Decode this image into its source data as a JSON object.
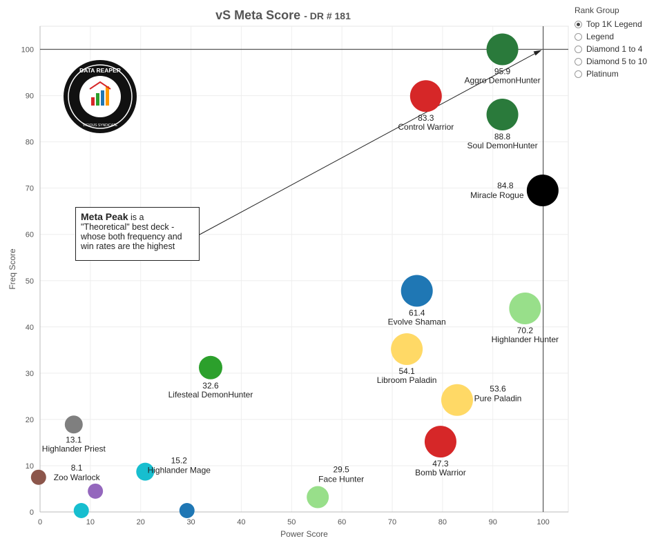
{
  "title": {
    "main": "vS Meta Score",
    "sub": "- DR # 181"
  },
  "legend": {
    "title": "Rank Group",
    "items": [
      {
        "label": "Top 1K Legend",
        "selected": true
      },
      {
        "label": "Legend",
        "selected": false
      },
      {
        "label": "Diamond 1 to 4",
        "selected": false
      },
      {
        "label": "Diamond 5 to 10",
        "selected": false
      },
      {
        "label": "Platinum",
        "selected": false
      }
    ]
  },
  "annotation": {
    "strong": "Meta Peak",
    "line1": " is a",
    "line2": "\"Theoretical\" best deck -",
    "line3": "whose both frequency and",
    "line4": "win rates are the highest"
  },
  "logo": {
    "text_top": "DATA REAPER REPORT",
    "text_bottom": "VICIOUS SYNDICATE PRESENTS"
  },
  "chart_data": {
    "type": "scatter",
    "title": "vS Meta Score - DR # 181",
    "xlabel": "Power Score",
    "ylabel": "Freq Score",
    "xlim": [
      0,
      105
    ],
    "ylim": [
      0,
      105
    ],
    "xticks": [
      0,
      10,
      20,
      30,
      40,
      50,
      60,
      70,
      80,
      90,
      100
    ],
    "yticks": [
      0,
      10,
      20,
      30,
      40,
      50,
      60,
      70,
      80,
      90,
      100
    ],
    "grid": true,
    "reference_lines": {
      "x": 100,
      "y": 100
    },
    "points": [
      {
        "name": "Aggro DemonHunter",
        "score": "95.9",
        "x": 91.9,
        "y": 100,
        "color": "#2a7a3b",
        "label_pos": "below"
      },
      {
        "name": "Control Warrior",
        "score": "83.3",
        "x": 76.7,
        "y": 89.9,
        "color": "#d62728",
        "label_pos": "below"
      },
      {
        "name": "Soul DemonHunter",
        "score": "88.8",
        "x": 91.9,
        "y": 85.9,
        "color": "#2a7a3b",
        "label_pos": "below"
      },
      {
        "name": "Miracle Rogue",
        "score": "84.8",
        "x": 99.9,
        "y": 69.5,
        "color": "#000000",
        "label_pos": "left"
      },
      {
        "name": "Evolve Shaman",
        "score": "61.4",
        "x": 74.9,
        "y": 47.8,
        "color": "#1f77b4",
        "label_pos": "below"
      },
      {
        "name": "Highlander Hunter",
        "score": "70.2",
        "x": 96.4,
        "y": 44.0,
        "color": "#98df8a",
        "label_pos": "below"
      },
      {
        "name": "Libroom Paladin",
        "score": "54.1",
        "x": 72.9,
        "y": 35.2,
        "color": "#ffd966",
        "label_pos": "below"
      },
      {
        "name": "Lifesteal DemonHunter",
        "score": "32.6",
        "x": 33.9,
        "y": 31.2,
        "color": "#2ca02c",
        "label_pos": "below"
      },
      {
        "name": "Pure Paladin",
        "score": "53.6",
        "x": 82.9,
        "y": 24.2,
        "color": "#ffd966",
        "label_pos": "right"
      },
      {
        "name": "Highlander Priest",
        "score": "13.1",
        "x": 6.7,
        "y": 18.9,
        "color": "#7f7f7f",
        "label_pos": "below"
      },
      {
        "name": "Bomb Warrior",
        "score": "47.3",
        "x": 79.6,
        "y": 15.2,
        "color": "#d62728",
        "label_pos": "below"
      },
      {
        "name": "Highlander Mage",
        "score": "15.2",
        "x": 20.9,
        "y": 8.7,
        "color": "#17becf",
        "label_pos": "right"
      },
      {
        "name": "Zoo Warlock",
        "score": "8.1",
        "x": 11.0,
        "y": 4.5,
        "color": "#9467bd",
        "label_pos": "above-left"
      },
      {
        "name": "Face Hunter",
        "score": "29.5",
        "x": 55.2,
        "y": 3.2,
        "color": "#98df8a",
        "label_pos": "above-right"
      },
      {
        "name": "",
        "score": "",
        "x": 8.2,
        "y": 0.3,
        "color": "#17becf",
        "label_pos": "none"
      },
      {
        "name": "",
        "score": "",
        "x": 29.2,
        "y": 0.3,
        "color": "#1f77b4",
        "label_pos": "none"
      },
      {
        "name": "",
        "score": "",
        "x": -0.3,
        "y": 7.5,
        "color": "#8c564b",
        "label_pos": "none"
      }
    ]
  }
}
